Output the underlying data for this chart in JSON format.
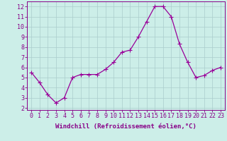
{
  "x": [
    0,
    1,
    2,
    3,
    4,
    5,
    6,
    7,
    8,
    9,
    10,
    11,
    12,
    13,
    14,
    15,
    16,
    17,
    18,
    19,
    20,
    21,
    22,
    23
  ],
  "y": [
    5.5,
    4.5,
    3.3,
    2.5,
    3.0,
    5.0,
    5.3,
    5.3,
    5.3,
    5.8,
    6.5,
    7.5,
    7.7,
    9.0,
    10.5,
    12.0,
    12.0,
    11.0,
    8.3,
    6.5,
    5.0,
    5.2,
    5.7,
    6.0
  ],
  "line_color": "#990099",
  "marker": "D",
  "marker_size": 2,
  "bg_color": "#cceee8",
  "grid_color": "#aacccc",
  "xlabel": "Windchill (Refroidissement éolien,°C)",
  "ylabel_ticks": [
    2,
    3,
    4,
    5,
    6,
    7,
    8,
    9,
    10,
    11,
    12
  ],
  "xlim": [
    -0.5,
    23.5
  ],
  "ylim": [
    1.8,
    12.5
  ],
  "xtick_labels": [
    "0",
    "1",
    "2",
    "3",
    "4",
    "5",
    "6",
    "7",
    "8",
    "9",
    "10",
    "11",
    "12",
    "13",
    "14",
    "15",
    "16",
    "17",
    "18",
    "19",
    "20",
    "21",
    "22",
    "23"
  ],
  "axis_color": "#880088",
  "label_fontsize": 6.5,
  "tick_fontsize": 6.0,
  "linewidth": 0.9
}
